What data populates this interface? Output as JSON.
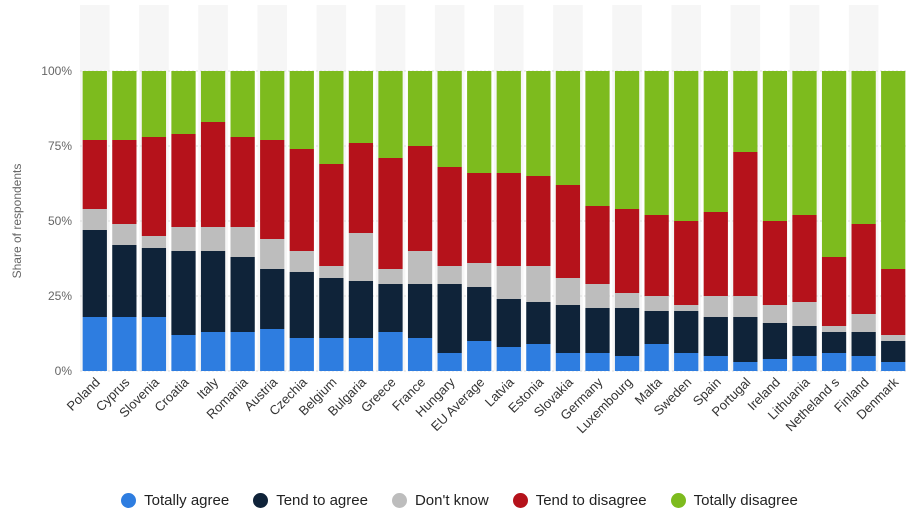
{
  "chart_data": {
    "type": "bar",
    "stacked": true,
    "ylabel": "Share of respondents",
    "ylim": [
      0,
      100
    ],
    "yticks": [
      "0%",
      "25%",
      "50%",
      "75%",
      "100%"
    ],
    "grid": true,
    "legend_position": "bottom",
    "categories": [
      "Poland",
      "Cyprus",
      "Slovenia",
      "Croatia",
      "Italy",
      "Romania",
      "Austria",
      "Czechia",
      "Belgium",
      "Bulgaria",
      "Greece",
      "France",
      "Hungary",
      "EU Average",
      "Latvia",
      "Estonia",
      "Slovakia",
      "Germany",
      "Luxembourg",
      "Malta",
      "Sweden",
      "Spain",
      "Portugal",
      "Ireland",
      "Lithuania",
      "Netheland s",
      "Finland",
      "Denmark"
    ],
    "series": [
      {
        "name": "Totally agree",
        "color": "#2e7de0",
        "values": [
          18,
          18,
          18,
          12,
          13,
          13,
          14,
          11,
          11,
          11,
          13,
          11,
          6,
          10,
          8,
          9,
          6,
          6,
          5,
          9,
          6,
          5,
          3,
          4,
          5,
          6,
          5,
          3
        ]
      },
      {
        "name": "Tend to agree",
        "color": "#0f2339",
        "values": [
          29,
          24,
          23,
          28,
          27,
          25,
          20,
          22,
          20,
          19,
          16,
          18,
          23,
          18,
          16,
          14,
          16,
          15,
          16,
          11,
          14,
          13,
          15,
          12,
          10,
          7,
          8,
          7
        ]
      },
      {
        "name": "Don't know",
        "color": "#bdbdbd",
        "values": [
          7,
          7,
          4,
          8,
          8,
          10,
          10,
          7,
          4,
          16,
          5,
          11,
          6,
          8,
          11,
          12,
          9,
          8,
          5,
          5,
          2,
          7,
          7,
          6,
          8,
          2,
          6,
          2
        ]
      },
      {
        "name": "Tend to disagree",
        "color": "#b5121b",
        "values": [
          23,
          28,
          33,
          31,
          35,
          30,
          33,
          34,
          34,
          30,
          37,
          35,
          33,
          30,
          31,
          30,
          31,
          26,
          28,
          27,
          28,
          28,
          48,
          28,
          29,
          23,
          30,
          22
        ]
      },
      {
        "name": "Totally disagree",
        "color": "#7dbb1e",
        "values": [
          23,
          23,
          22,
          21,
          17,
          22,
          23,
          26,
          31,
          24,
          29,
          25,
          32,
          34,
          34,
          35,
          38,
          45,
          46,
          48,
          50,
          47,
          27,
          50,
          48,
          62,
          51,
          66
        ]
      }
    ]
  }
}
